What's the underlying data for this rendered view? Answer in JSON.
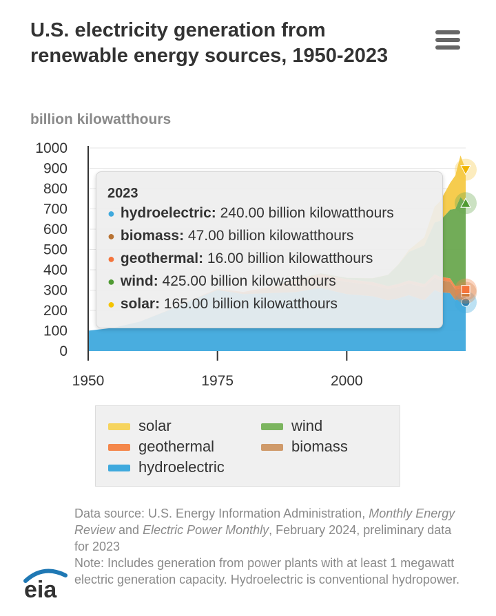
{
  "header": {
    "title": "U.S. electricity generation from renewable energy sources, 1950-2023",
    "menu_icon": "hamburger-menu-icon"
  },
  "colors": {
    "hydroelectric": "#3fa9dd",
    "biomass": "#c98a55",
    "geothermal": "#f4874b",
    "wind": "#6aa84f",
    "solar": "#f6c945"
  },
  "tooltip": {
    "year": "2023",
    "rows": [
      {
        "name": "hydroelectric:",
        "value": "240.00 billion kilowatthours",
        "color": "#3fa9dd"
      },
      {
        "name": "biomass:",
        "value": "47.00 billion kilowatthours",
        "color": "#b87333"
      },
      {
        "name": "geothermal:",
        "value": "16.00 billion kilowatthours",
        "color": "#f4743b"
      },
      {
        "name": "wind:",
        "value": "425.00 billion kilowatthours",
        "color": "#4f9a32"
      },
      {
        "name": "solar:",
        "value": "165.00 billion kilowatthours",
        "color": "#f5c400"
      }
    ]
  },
  "legend": [
    {
      "label": "solar",
      "color": "#f6d45e"
    },
    {
      "label": "wind",
      "color": "#7cb55f"
    },
    {
      "label": "geothermal",
      "color": "#f4874b"
    },
    {
      "label": "biomass",
      "color": "#cf9a6a"
    },
    {
      "label": "hydroelectric",
      "color": "#3fa9dd"
    }
  ],
  "source": {
    "line1_a": "Data source: U.S. Energy Information Administration, ",
    "line1_b": "Monthly Energy Review",
    "line1_c": " and ",
    "line1_d": "Electric Power Monthly",
    "line1_e": ", February 2024, preliminary data for 2023",
    "note": "Note: Includes generation from power plants with at least 1 megawatt electric generation capacity. Hydroelectric is conventional hydropower."
  },
  "logo_text": "eia",
  "chart_data": {
    "type": "area",
    "stacked": true,
    "title": "U.S. electricity generation from renewable energy sources, 1950-2023",
    "ylabel": "billion kilowatthours",
    "ylim": [
      0,
      1000
    ],
    "yticks": [
      "0",
      "100",
      "200",
      "300",
      "400",
      "500",
      "600",
      "700",
      "800",
      "900",
      "1000"
    ],
    "xticks": [
      "1950",
      "1975",
      "2000"
    ],
    "x": [
      1950,
      1955,
      1960,
      1965,
      1970,
      1975,
      1980,
      1985,
      1990,
      1995,
      2000,
      2005,
      2008,
      2010,
      2012,
      2015,
      2017,
      2018,
      2020,
      2021,
      2022,
      2023
    ],
    "series": [
      {
        "name": "hydroelectric",
        "values": [
          100,
          115,
          145,
          195,
          250,
          300,
          280,
          285,
          290,
          310,
          280,
          270,
          250,
          260,
          275,
          250,
          300,
          290,
          285,
          250,
          255,
          240
        ]
      },
      {
        "name": "biomass",
        "values": [
          0,
          0,
          0,
          1,
          2,
          3,
          6,
          20,
          45,
          55,
          60,
          55,
          55,
          56,
          57,
          64,
          62,
          60,
          56,
          54,
          52,
          47
        ]
      },
      {
        "name": "geothermal",
        "values": [
          0,
          0,
          0,
          0,
          1,
          3,
          5,
          9,
          15,
          14,
          14,
          15,
          15,
          15,
          16,
          16,
          16,
          16,
          17,
          16,
          16,
          16
        ]
      },
      {
        "name": "wind",
        "values": [
          0,
          0,
          0,
          0,
          0,
          0,
          0,
          0,
          3,
          3,
          6,
          18,
          55,
          95,
          140,
          190,
          255,
          275,
          338,
          380,
          435,
          425
        ]
      },
      {
        "name": "solar",
        "values": [
          0,
          0,
          0,
          0,
          0,
          0,
          0,
          0,
          0,
          1,
          1,
          1,
          1,
          2,
          10,
          40,
          78,
          95,
          132,
          165,
          205,
          165
        ]
      }
    ]
  }
}
